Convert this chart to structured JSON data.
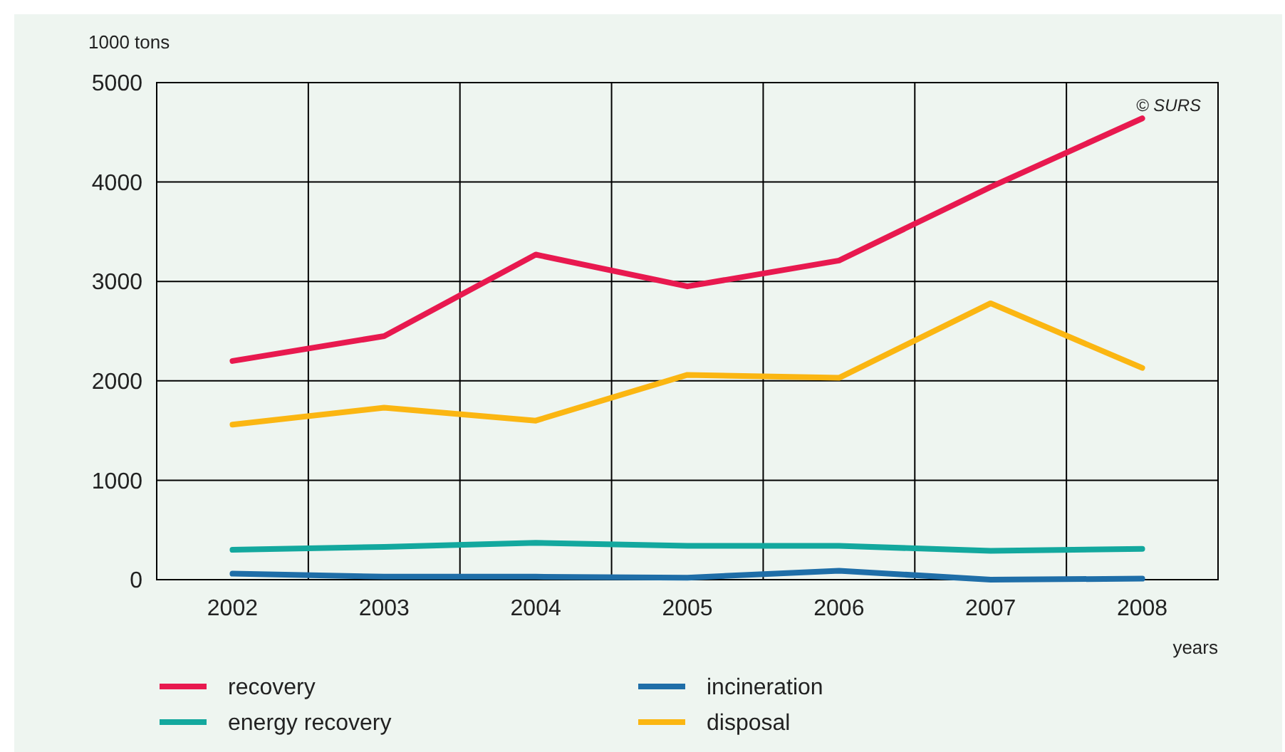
{
  "chart_data": {
    "type": "line",
    "ylabel": "1000 tons",
    "xlabel": "years",
    "categories": [
      "2002",
      "2003",
      "2004",
      "2005",
      "2006",
      "2007",
      "2008"
    ],
    "ylim": [
      0,
      5000
    ],
    "yticks": [
      0,
      1000,
      2000,
      3000,
      4000,
      5000
    ],
    "grid": true,
    "legend": "bottom",
    "marker": "none",
    "line_style": "solid",
    "annotations": [
      "© SURS"
    ],
    "series": [
      {
        "name": "recovery",
        "color": "#e8194f",
        "values": [
          2200,
          2450,
          3270,
          2950,
          3210,
          3950,
          4640
        ]
      },
      {
        "name": "energy recovery",
        "color": "#13a89e",
        "values": [
          300,
          330,
          370,
          340,
          340,
          290,
          310
        ]
      },
      {
        "name": "incineration",
        "color": "#1f6ea8",
        "values": [
          60,
          30,
          30,
          20,
          90,
          0,
          10
        ]
      },
      {
        "name": "disposal",
        "color": "#fbb612",
        "values": [
          1560,
          1730,
          1600,
          2060,
          2030,
          2780,
          2130
        ]
      }
    ]
  }
}
